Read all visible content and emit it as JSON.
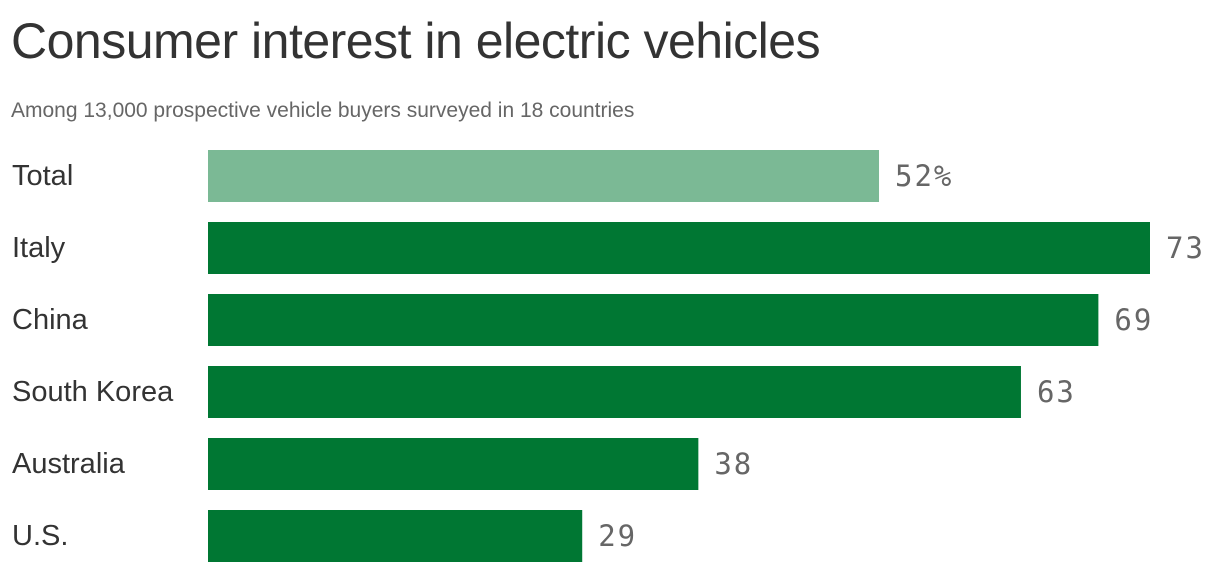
{
  "chart_data": {
    "type": "bar",
    "orientation": "horizontal",
    "title": "Consumer interest in electric vehicles",
    "subtitle": "Among 13,000 prospective vehicle buyers surveyed in 18 countries",
    "categories": [
      "Total",
      "Italy",
      "China",
      "South Korea",
      "Australia",
      "U.S."
    ],
    "values": [
      52,
      73,
      69,
      63,
      38,
      29
    ],
    "value_labels": [
      "52%",
      "73",
      "69",
      "63",
      "38",
      "29"
    ],
    "unit": "%",
    "xlim": [
      0,
      73
    ],
    "grid": false,
    "legend": "none",
    "colors": {
      "highlight_bar": "#7bb995",
      "bar": "#007733",
      "category_text": "#333333",
      "value_text": "#666666"
    }
  }
}
